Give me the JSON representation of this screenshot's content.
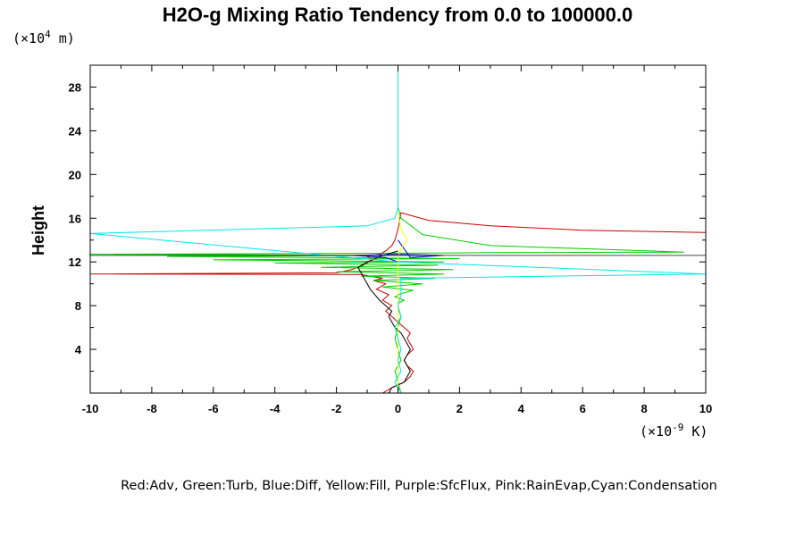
{
  "chart_data": {
    "type": "line",
    "title": "H2O-g Mixing Ratio Tendency from 0.0 to 100000.0",
    "xlabel": "",
    "ylabel": "Height",
    "x_unit_prefix": "(×10",
    "x_unit_exp": "-9",
    "x_unit_suffix": " K)",
    "y_unit_prefix": "(×10",
    "y_unit_exp": "4",
    "y_unit_suffix": " m)",
    "xlim": [
      -10,
      10
    ],
    "ylim": [
      0,
      30
    ],
    "x_ticks": [
      -10,
      -8,
      -6,
      -4,
      -2,
      0,
      2,
      4,
      6,
      8,
      10
    ],
    "x_tick_labels": [
      "-10",
      "-8",
      "-6",
      "-4",
      "-2",
      "0",
      "2",
      "4",
      "6",
      "8",
      "10"
    ],
    "y_ticks": [
      4,
      8,
      12,
      16,
      20,
      24,
      28
    ],
    "y_tick_labels": [
      "4",
      "8",
      "12",
      "16",
      "20",
      "24",
      "28"
    ],
    "grid": false,
    "caption": "Red:Adv, Green:Turb, Blue:Diff, Yellow:Fill, Purple:SfcFlux, Pink:RainEvap,Cyan:Condensation",
    "series": [
      {
        "color": "#cc0000",
        "x": [
          -0.5,
          -0.2,
          0.2,
          0.4,
          0.5,
          0.3,
          0.2,
          0.3,
          0.5,
          0.4,
          0.3,
          0.4,
          0.2,
          0.0,
          -0.2,
          -0.4,
          -0.2,
          -0.5,
          -0.3,
          -0.7,
          -0.4,
          -0.8,
          -0.5,
          -0.9,
          -1.2,
          -10.0,
          -2.0,
          -1.5,
          -1.2,
          -1.0,
          -0.8,
          -1.0,
          -0.6,
          -0.4,
          -0.2,
          -0.1,
          0.0,
          0.1,
          1.0,
          3.0,
          6.0,
          10.0
        ],
        "y": [
          0,
          0.5,
          1.0,
          1.5,
          2.0,
          2.5,
          3.0,
          3.5,
          4.0,
          4.5,
          5.0,
          5.5,
          6.0,
          6.5,
          7.0,
          7.5,
          8.0,
          8.5,
          9.0,
          9.5,
          10.0,
          10.3,
          10.5,
          10.7,
          10.85,
          10.9,
          11.0,
          11.3,
          11.6,
          11.9,
          12.2,
          12.5,
          12.7,
          13.0,
          13.5,
          14.0,
          15.0,
          16.5,
          15.8,
          15.3,
          14.9,
          14.7
        ]
      },
      {
        "color": "#00cc00",
        "x": [
          0.1,
          0.0,
          -0.1,
          0.1,
          0.0,
          -0.1,
          0.0,
          0.1,
          0.0,
          0.0,
          0.2,
          -0.1,
          0.1,
          0.5,
          -0.5,
          0.8,
          -0.8,
          1.2,
          -1.2,
          1.5,
          -2.0,
          1.8,
          -2.5,
          1.3,
          -4.0,
          1.5,
          -6.0,
          2.0,
          -7.5,
          1.0,
          -10.0,
          0.5,
          3.0,
          9.3,
          3.0,
          0.8,
          0.1,
          0.0
        ],
        "y": [
          0,
          1.0,
          2.0,
          3.0,
          4.0,
          5.0,
          6.0,
          7.0,
          7.8,
          8.2,
          8.5,
          8.8,
          9.1,
          9.4,
          9.7,
          10.0,
          10.3,
          10.5,
          10.7,
          10.9,
          11.1,
          11.3,
          11.5,
          11.7,
          11.9,
          12.0,
          12.2,
          12.3,
          12.5,
          12.6,
          12.7,
          12.8,
          12.85,
          12.9,
          13.5,
          14.5,
          16.0,
          17.0
        ]
      },
      {
        "color": "#000000",
        "x": [
          -0.3,
          -0.2,
          0.2,
          0.3,
          0.4,
          0.3,
          0.2,
          0.3,
          0.4,
          0.3,
          0.2,
          0.1,
          -0.1,
          -0.3,
          -0.2,
          -0.4,
          -0.6,
          -0.9,
          -1.0,
          -1.1,
          -1.2,
          -1.3,
          -1.0,
          -0.6,
          0.0
        ],
        "y": [
          0,
          0.5,
          1.0,
          1.5,
          2.0,
          2.5,
          3.0,
          3.5,
          4.0,
          4.5,
          5.0,
          5.5,
          6.0,
          7.0,
          7.5,
          8.0,
          8.5,
          9.5,
          10.0,
          10.5,
          11.0,
          11.5,
          12.0,
          12.5,
          13.0
        ]
      },
      {
        "color": "#0000cc",
        "x": [
          0.0,
          0.0,
          0.0,
          -0.4,
          -1.5,
          0.0,
          1.5,
          0.4,
          0.0
        ],
        "y": [
          0,
          10.0,
          12.0,
          12.4,
          12.6,
          12.7,
          12.6,
          12.4,
          14.0
        ]
      },
      {
        "color": "#ffff00",
        "x": [
          0.0,
          0.0,
          0.0,
          0.0,
          0.1,
          0.3,
          0.1,
          0.0
        ],
        "y": [
          0,
          9.0,
          11.0,
          12.5,
          13.2,
          14.0,
          15.0,
          16.5
        ]
      },
      {
        "color": "#00e6e6",
        "x": [
          0.1,
          -0.1,
          0.1,
          0.0,
          0.1,
          0.0,
          -0.1,
          0.1,
          0.0,
          0.1,
          0.1,
          10.0,
          0.0,
          -10.0,
          -1.0,
          -0.1,
          0.0,
          0.0
        ],
        "y": [
          0,
          1.0,
          2.0,
          3.0,
          4.0,
          5.0,
          6.0,
          7.0,
          8.0,
          9.0,
          10.5,
          10.9,
          12.0,
          14.6,
          15.3,
          16.0,
          17.0,
          30.0
        ]
      },
      {
        "color": "#444444",
        "x": [
          -10.0,
          10.0
        ],
        "y": [
          12.6,
          12.6
        ]
      }
    ]
  }
}
